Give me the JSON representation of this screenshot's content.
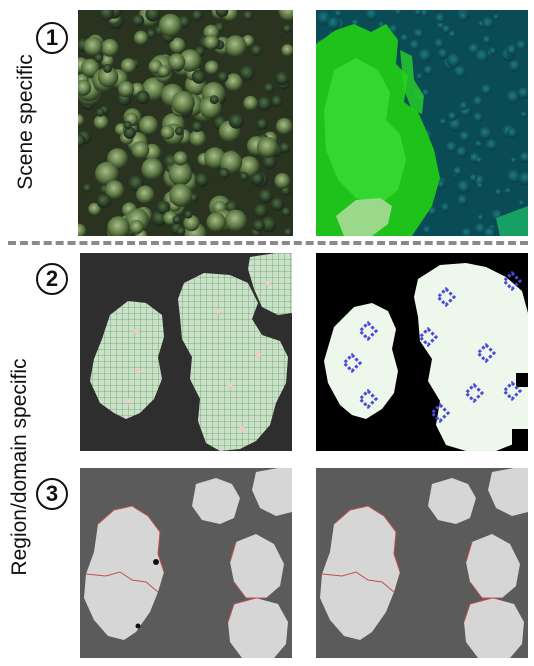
{
  "steps": [
    {
      "number": "1",
      "label": "Scene specific"
    },
    {
      "number": "2",
      "label": ""
    },
    {
      "number": "3",
      "label": ""
    }
  ],
  "side_label_2": "Region/domain specific",
  "colors": {
    "forest_dark": "#27331f",
    "forest_light": "#8ea46e",
    "seg_green": "#2fc81e",
    "seg_teal": "#0c5d66",
    "mask_bg": "#303030",
    "mask_cell": "#cde3c8",
    "marker_blue": "#4a4ad8",
    "region_bg": "#5b5b5b",
    "region_fill": "#d4d4d4",
    "boundary_red": "#c0504d"
  },
  "icons": [
    "circled-number-icon"
  ]
}
